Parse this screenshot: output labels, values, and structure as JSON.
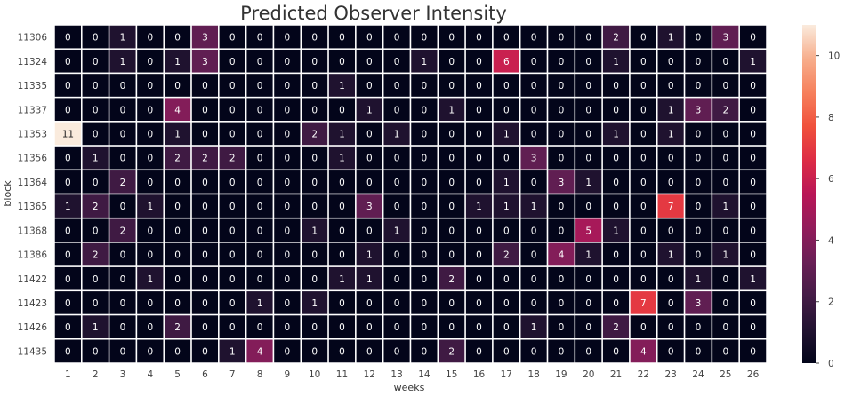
{
  "chart_data": {
    "type": "heatmap",
    "title": "Predicted Observer Intensity",
    "xlabel": "weeks",
    "ylabel": "block",
    "x": [
      "1",
      "2",
      "3",
      "4",
      "5",
      "6",
      "7",
      "8",
      "9",
      "10",
      "11",
      "12",
      "13",
      "14",
      "15",
      "16",
      "17",
      "18",
      "19",
      "20",
      "21",
      "22",
      "23",
      "24",
      "25",
      "26"
    ],
    "y": [
      "11306",
      "11324",
      "11335",
      "11337",
      "11353",
      "11356",
      "11364",
      "11365",
      "11368",
      "11386",
      "11422",
      "11423",
      "11426",
      "11435"
    ],
    "values": [
      [
        0,
        0,
        1,
        0,
        0,
        3,
        0,
        0,
        0,
        0,
        0,
        0,
        0,
        0,
        0,
        0,
        0,
        0,
        0,
        0,
        2,
        0,
        1,
        0,
        3,
        0
      ],
      [
        0,
        0,
        1,
        0,
        1,
        3,
        0,
        0,
        0,
        0,
        0,
        0,
        0,
        1,
        0,
        0,
        6,
        0,
        0,
        0,
        1,
        0,
        0,
        0,
        0,
        1
      ],
      [
        0,
        0,
        0,
        0,
        0,
        0,
        0,
        0,
        0,
        0,
        1,
        0,
        0,
        0,
        0,
        0,
        0,
        0,
        0,
        0,
        0,
        0,
        0,
        0,
        0,
        0
      ],
      [
        0,
        0,
        0,
        0,
        4,
        0,
        0,
        0,
        0,
        0,
        0,
        1,
        0,
        0,
        1,
        0,
        0,
        0,
        0,
        0,
        0,
        0,
        1,
        3,
        2,
        0
      ],
      [
        11,
        0,
        0,
        0,
        1,
        0,
        0,
        0,
        0,
        2,
        1,
        0,
        1,
        0,
        0,
        0,
        1,
        0,
        0,
        0,
        1,
        0,
        1,
        0,
        0,
        0
      ],
      [
        0,
        1,
        0,
        0,
        2,
        2,
        2,
        0,
        0,
        0,
        1,
        0,
        0,
        0,
        0,
        0,
        0,
        3,
        0,
        0,
        0,
        0,
        0,
        0,
        0,
        0
      ],
      [
        0,
        0,
        2,
        0,
        0,
        0,
        0,
        0,
        0,
        0,
        0,
        0,
        0,
        0,
        0,
        0,
        1,
        0,
        3,
        1,
        0,
        0,
        0,
        0,
        0,
        0
      ],
      [
        1,
        2,
        0,
        1,
        0,
        0,
        0,
        0,
        0,
        0,
        0,
        3,
        0,
        0,
        0,
        1,
        1,
        1,
        0,
        0,
        0,
        0,
        7,
        0,
        1,
        0
      ],
      [
        0,
        0,
        2,
        0,
        0,
        0,
        0,
        0,
        0,
        1,
        0,
        0,
        1,
        0,
        0,
        0,
        0,
        0,
        0,
        5,
        1,
        0,
        0,
        0,
        0,
        0
      ],
      [
        0,
        2,
        0,
        0,
        0,
        0,
        0,
        0,
        0,
        0,
        0,
        1,
        0,
        0,
        0,
        0,
        2,
        0,
        4,
        1,
        0,
        0,
        1,
        0,
        1,
        0
      ],
      [
        0,
        0,
        0,
        1,
        0,
        0,
        0,
        0,
        0,
        0,
        1,
        1,
        0,
        0,
        2,
        0,
        0,
        0,
        0,
        0,
        0,
        0,
        0,
        1,
        0,
        1
      ],
      [
        0,
        0,
        0,
        0,
        0,
        0,
        0,
        1,
        0,
        1,
        0,
        0,
        0,
        0,
        0,
        0,
        0,
        0,
        0,
        0,
        0,
        7,
        0,
        3,
        0,
        0
      ],
      [
        0,
        1,
        0,
        0,
        2,
        0,
        0,
        0,
        0,
        0,
        0,
        0,
        0,
        0,
        0,
        0,
        0,
        1,
        0,
        0,
        2,
        0,
        0,
        0,
        0,
        0
      ],
      [
        0,
        0,
        0,
        0,
        0,
        0,
        1,
        4,
        0,
        0,
        0,
        0,
        0,
        0,
        2,
        0,
        0,
        0,
        0,
        0,
        0,
        4,
        0,
        0,
        0,
        0
      ]
    ],
    "vmin": 0,
    "vmax": 11,
    "colorbar_ticks": [
      "0",
      "2",
      "4",
      "6",
      "8",
      "10"
    ],
    "colormap": "rocket",
    "cell_border_color": "#ffffff",
    "annotations": true
  }
}
